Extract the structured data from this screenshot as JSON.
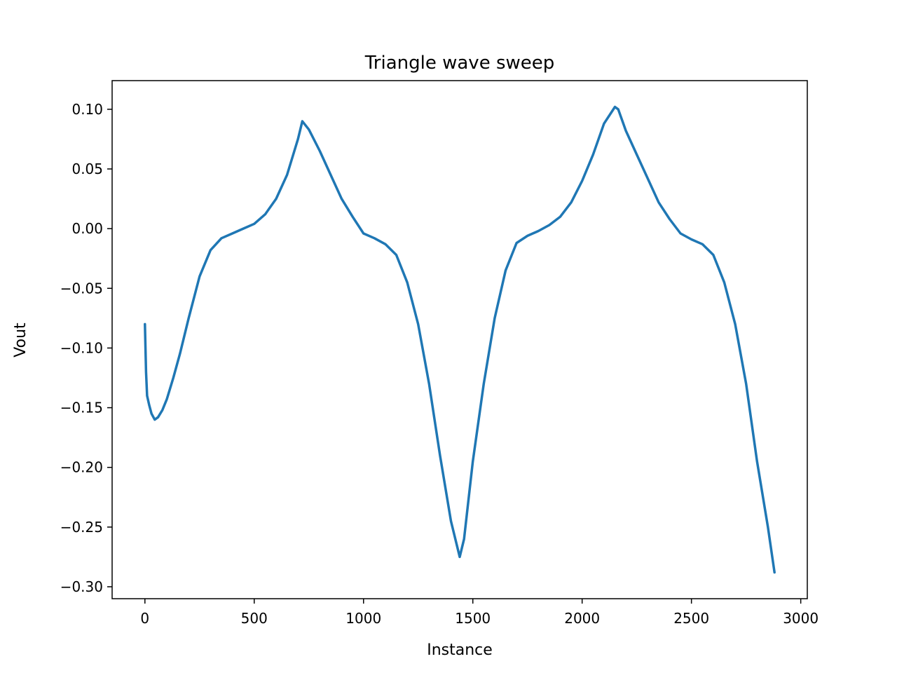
{
  "chart_data": {
    "type": "line",
    "title": "Triangle wave sweep",
    "xlabel": "Instance",
    "ylabel": "Vout",
    "xlim": [
      -150,
      3030
    ],
    "ylim": [
      -0.31,
      0.124
    ],
    "xticks": [
      0,
      500,
      1000,
      1500,
      2000,
      2500,
      3000
    ],
    "xtick_labels": [
      "0",
      "500",
      "1000",
      "1500",
      "2000",
      "2500",
      "3000"
    ],
    "yticks": [
      0.1,
      0.05,
      0.0,
      -0.05,
      -0.1,
      -0.15,
      -0.2,
      -0.25,
      -0.3
    ],
    "ytick_labels": [
      "0.10",
      "0.05",
      "0.00",
      "−0.05",
      "−0.10",
      "−0.15",
      "−0.20",
      "−0.25",
      "−0.30"
    ],
    "grid": false,
    "legend": false,
    "color": "#1f77b4",
    "series": [
      {
        "x": [
          0,
          5,
          10,
          20,
          30,
          45,
          60,
          80,
          100,
          130,
          160,
          200,
          250,
          300,
          350,
          400,
          450,
          500,
          550,
          600,
          650,
          700,
          720,
          750,
          800,
          850,
          900,
          950,
          1000,
          1050,
          1100,
          1150,
          1200,
          1250,
          1300,
          1350,
          1400,
          1440,
          1460,
          1500,
          1550,
          1600,
          1650,
          1700,
          1750,
          1800,
          1850,
          1900,
          1950,
          2000,
          2050,
          2100,
          2150,
          2165,
          2200,
          2250,
          2300,
          2350,
          2400,
          2450,
          2500,
          2550,
          2600,
          2650,
          2700,
          2750,
          2800,
          2850,
          2880
        ],
        "y": [
          -0.08,
          -0.12,
          -0.14,
          -0.148,
          -0.155,
          -0.16,
          -0.158,
          -0.152,
          -0.143,
          -0.125,
          -0.105,
          -0.075,
          -0.04,
          -0.018,
          -0.008,
          -0.004,
          0.0,
          0.004,
          0.012,
          0.025,
          0.045,
          0.075,
          0.09,
          0.083,
          0.065,
          0.045,
          0.025,
          0.01,
          -0.004,
          -0.008,
          -0.013,
          -0.022,
          -0.045,
          -0.08,
          -0.13,
          -0.19,
          -0.245,
          -0.275,
          -0.26,
          -0.195,
          -0.13,
          -0.075,
          -0.035,
          -0.012,
          -0.006,
          -0.002,
          0.003,
          0.01,
          0.022,
          0.04,
          0.062,
          0.088,
          0.102,
          0.1,
          0.082,
          0.062,
          0.042,
          0.022,
          0.008,
          -0.004,
          -0.009,
          -0.013,
          -0.022,
          -0.045,
          -0.08,
          -0.13,
          -0.195,
          -0.25,
          -0.288
        ]
      }
    ]
  }
}
